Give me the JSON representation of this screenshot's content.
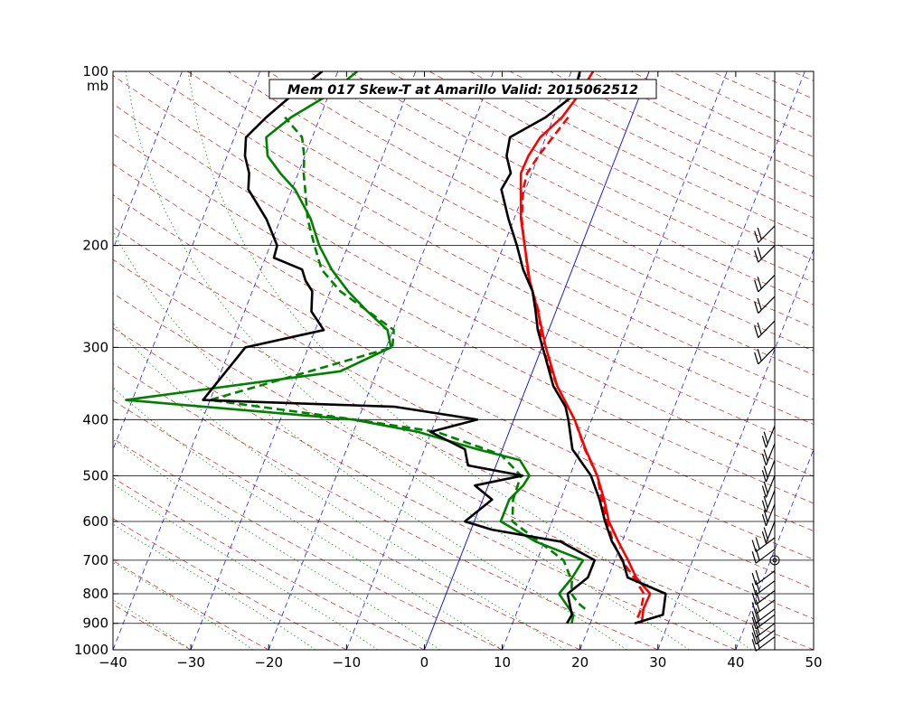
{
  "chart_data": {
    "type": "line",
    "title": "Mem 017  Skew-T at Amarillo   Valid: 2015062512",
    "ylabel": "mb",
    "xlim": [
      -40,
      50
    ],
    "ylim": [
      1000,
      100
    ],
    "y_scale": "log",
    "x_ticks": [
      -40,
      -30,
      -20,
      -10,
      0,
      10,
      20,
      30,
      40,
      50
    ],
    "x_tick_labels": [
      "−40",
      "−30",
      "−20",
      "−10",
      "0",
      "10",
      "20",
      "30",
      "40",
      "50"
    ],
    "y_ticks": [
      1000,
      900,
      800,
      700,
      600,
      500,
      400,
      300,
      200,
      100
    ],
    "y_tick_labels": [
      "1000",
      "900",
      "800",
      "700",
      "600",
      "500",
      "400",
      "300",
      "200",
      "100"
    ],
    "grid": true,
    "colors": {
      "temperature": "#ff0000",
      "dewpoint": "#008000",
      "black_trace": "#000000",
      "isotherm_zero": "#0000ff",
      "isotherms": "#0000ff",
      "dry_adiabats": "#c00000",
      "mixing_ratio": "#008000"
    },
    "series": [
      {
        "key": "temp_solid",
        "color": "#ff0000",
        "style": "solid",
        "points": [
          [
            26.6,
            900
          ],
          [
            26.1,
            850
          ],
          [
            26.2,
            800
          ],
          [
            23.6,
            750
          ],
          [
            21.7,
            700
          ],
          [
            19.5,
            650
          ],
          [
            17.3,
            600
          ],
          [
            15.6,
            550
          ],
          [
            13.5,
            500
          ],
          [
            10.7,
            450
          ],
          [
            7.8,
            400
          ],
          [
            3.9,
            350
          ],
          [
            0.5,
            300
          ],
          [
            -2.3,
            260
          ],
          [
            -4.9,
            230
          ],
          [
            -7.3,
            200
          ],
          [
            -9.1,
            180
          ],
          [
            -10.6,
            160
          ],
          [
            -11.4,
            150
          ],
          [
            -11.3,
            140
          ],
          [
            -10.7,
            130
          ],
          [
            -8.9,
            120
          ],
          [
            -7.9,
            110
          ],
          [
            -7.2,
            100
          ]
        ]
      },
      {
        "key": "temp_dashed",
        "color": "#ff0000",
        "style": "dashed",
        "points": [
          [
            25.8,
            880
          ],
          [
            25.8,
            850
          ],
          [
            25.4,
            800
          ],
          [
            23.3,
            750
          ],
          [
            20.9,
            700
          ],
          [
            18.8,
            650
          ],
          [
            17.1,
            600
          ],
          [
            15.3,
            550
          ],
          [
            13.5,
            500
          ],
          [
            10.6,
            450
          ],
          [
            7.8,
            400
          ],
          [
            3.9,
            350
          ],
          [
            0.0,
            300
          ],
          [
            -2.2,
            260
          ],
          [
            -5.0,
            230
          ],
          [
            -7.3,
            200
          ],
          [
            -9.0,
            180
          ],
          [
            -10.3,
            160
          ],
          [
            -10.6,
            150
          ],
          [
            -10.0,
            140
          ],
          [
            -9.1,
            130
          ],
          [
            -8.1,
            120
          ]
        ]
      },
      {
        "key": "dewpoint_solid",
        "color": "#008000",
        "style": "solid",
        "points": [
          [
            17.6,
            900
          ],
          [
            17.4,
            870
          ],
          [
            14.5,
            800
          ],
          [
            15.4,
            750
          ],
          [
            15.9,
            700
          ],
          [
            8.9,
            650
          ],
          [
            3.4,
            600
          ],
          [
            3.4,
            550
          ],
          [
            4.5,
            520
          ],
          [
            4.8,
            500
          ],
          [
            2.8,
            470
          ],
          [
            -3.2,
            450
          ],
          [
            -11.7,
            420
          ],
          [
            -20.6,
            400
          ],
          [
            -50.8,
            370
          ],
          [
            -24.7,
            330
          ],
          [
            -19.4,
            300
          ],
          [
            -20.7,
            280
          ],
          [
            -24.2,
            260
          ],
          [
            -27.7,
            240
          ],
          [
            -30.9,
            220
          ],
          [
            -33.7,
            200
          ],
          [
            -36.1,
            180
          ],
          [
            -39.6,
            160
          ],
          [
            -42.3,
            150
          ],
          [
            -44.8,
            140
          ],
          [
            -45.9,
            130
          ],
          [
            -43.7,
            120
          ],
          [
            -40.1,
            110
          ],
          [
            -37.5,
            100
          ]
        ]
      },
      {
        "key": "dewpoint_dashed",
        "color": "#008000",
        "style": "dashed",
        "points": [
          [
            18.6,
            850
          ],
          [
            17.4,
            830
          ],
          [
            16.1,
            800
          ],
          [
            15.5,
            760
          ],
          [
            13.4,
            700
          ],
          [
            4.9,
            600
          ],
          [
            3.9,
            550
          ],
          [
            3.7,
            500
          ],
          [
            0.1,
            460
          ],
          [
            -9.3,
            420
          ],
          [
            -20.4,
            400
          ],
          [
            -40.0,
            370
          ],
          [
            -19.2,
            300
          ],
          [
            -19.9,
            280
          ],
          [
            -24.1,
            260
          ],
          [
            -28.7,
            240
          ],
          [
            -32.2,
            220
          ],
          [
            -34.3,
            200
          ],
          [
            -36.5,
            180
          ],
          [
            -38.3,
            160
          ],
          [
            -39.3,
            150
          ],
          [
            -40.1,
            140
          ],
          [
            -41.3,
            130
          ],
          [
            -44.5,
            120
          ]
        ]
      },
      {
        "key": "black_right",
        "color": "#000000",
        "style": "solid",
        "points": [
          [
            25.7,
            900
          ],
          [
            28.9,
            870
          ],
          [
            28.2,
            800
          ],
          [
            22.5,
            750
          ],
          [
            21.0,
            700
          ],
          [
            18.7,
            650
          ],
          [
            16.8,
            600
          ],
          [
            15.0,
            550
          ],
          [
            12.7,
            500
          ],
          [
            9.0,
            450
          ],
          [
            7.0,
            400
          ],
          [
            6.0,
            380
          ],
          [
            3.4,
            350
          ],
          [
            0.1,
            300
          ],
          [
            -1.4,
            280
          ],
          [
            -2.6,
            260
          ],
          [
            -4.0,
            240
          ],
          [
            -6.3,
            220
          ],
          [
            -8.3,
            200
          ],
          [
            -10.7,
            180
          ],
          [
            -13.1,
            160
          ],
          [
            -12.7,
            150
          ],
          [
            -14.1,
            140
          ],
          [
            -14.6,
            130
          ],
          [
            -11.0,
            120
          ],
          [
            -8.5,
            110
          ],
          [
            -8.9,
            100
          ]
        ]
      },
      {
        "key": "black_left",
        "color": "#000000",
        "style": "solid",
        "points": [
          [
            17.0,
            900
          ],
          [
            17.2,
            870
          ],
          [
            15.6,
            800
          ],
          [
            17.4,
            750
          ],
          [
            17.4,
            700
          ],
          [
            12.1,
            650
          ],
          [
            2.7,
            620
          ],
          [
            -1.2,
            600
          ],
          [
            1.2,
            550
          ],
          [
            -1.7,
            520
          ],
          [
            3.9,
            500
          ],
          [
            -3.6,
            480
          ],
          [
            -4.8,
            450
          ],
          [
            -10.1,
            420
          ],
          [
            -4.7,
            400
          ],
          [
            -15.9,
            380
          ],
          [
            -40.9,
            370
          ],
          [
            -38.1,
            300
          ],
          [
            -28.9,
            280
          ],
          [
            -31.4,
            260
          ],
          [
            -32.3,
            240
          ],
          [
            -33.7,
            230
          ],
          [
            -34.7,
            220
          ],
          [
            -38.9,
            210
          ],
          [
            -39.1,
            200
          ],
          [
            -41.8,
            180
          ],
          [
            -45.6,
            160
          ],
          [
            -46.3,
            150
          ],
          [
            -47.7,
            140
          ],
          [
            -48.5,
            130
          ],
          [
            -46.9,
            120
          ],
          [
            -44.7,
            110
          ],
          [
            -42.0,
            100
          ]
        ]
      }
    ],
    "wind_barbs": [
      {
        "p": 950,
        "kind": "barb"
      },
      {
        "p": 925,
        "kind": "barb"
      },
      {
        "p": 900,
        "kind": "barb"
      },
      {
        "p": 870,
        "kind": "barb"
      },
      {
        "p": 850,
        "kind": "barb"
      },
      {
        "p": 820,
        "kind": "barb"
      },
      {
        "p": 790,
        "kind": "barb"
      },
      {
        "p": 760,
        "kind": "barb"
      },
      {
        "p": 730,
        "kind": "barb"
      },
      {
        "p": 700,
        "kind": "calm"
      },
      {
        "p": 670,
        "kind": "barb"
      },
      {
        "p": 640,
        "kind": "barb"
      },
      {
        "p": 600,
        "kind": "barb"
      },
      {
        "p": 560,
        "kind": "barb"
      },
      {
        "p": 530,
        "kind": "barb"
      },
      {
        "p": 500,
        "kind": "barb"
      },
      {
        "p": 470,
        "kind": "barb"
      },
      {
        "p": 440,
        "kind": "barb"
      },
      {
        "p": 410,
        "kind": "barb"
      },
      {
        "p": 300,
        "kind": "barb"
      },
      {
        "p": 270,
        "kind": "barb"
      },
      {
        "p": 245,
        "kind": "barb"
      },
      {
        "p": 225,
        "kind": "barb"
      },
      {
        "p": 200,
        "kind": "barb"
      },
      {
        "p": 185,
        "kind": "barb"
      }
    ]
  }
}
